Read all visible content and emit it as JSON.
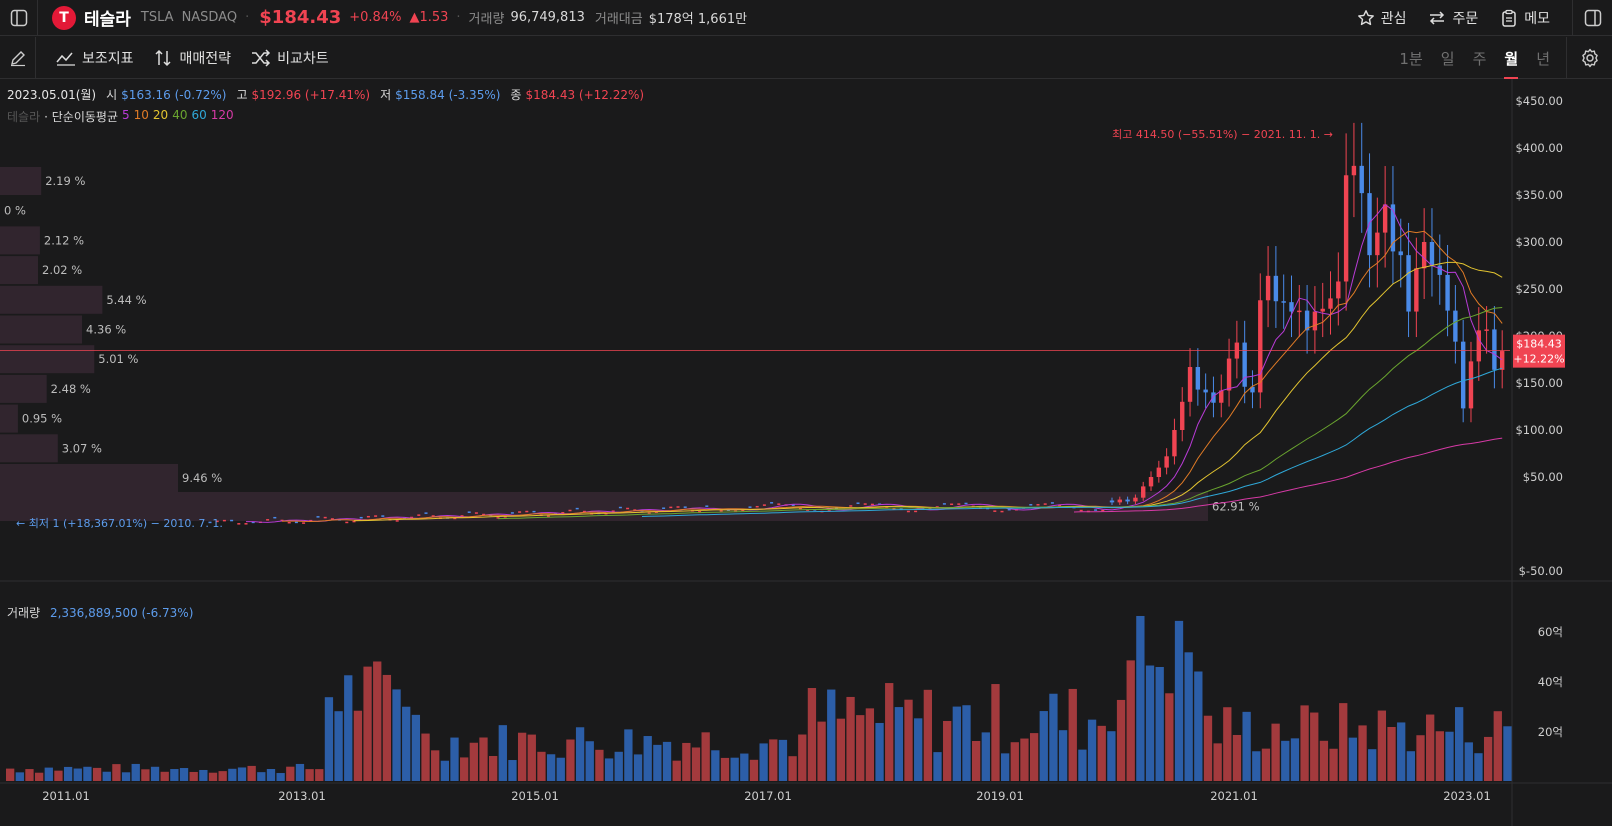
{
  "header": {
    "logo_text": "T",
    "name": "테슬라",
    "ticker": "TSLA",
    "exchange": "NASDAQ",
    "price": "$184.43",
    "change_pct": "+0.84%",
    "change_abs": "▲1.53",
    "volume_label": "거래량",
    "volume_value": "96,749,813",
    "amount_label": "거래대금",
    "amount_value": "$178억 1,661만",
    "watch_label": "관심",
    "order_label": "주문",
    "memo_label": "메모"
  },
  "toolbar": {
    "indicators_label": "보조지표",
    "strategy_label": "매매전략",
    "compare_label": "비교차트",
    "periods": [
      "1분",
      "일",
      "주",
      "월",
      "년"
    ],
    "active_period": "월"
  },
  "ohlc": {
    "date": "2023.05.01(월)",
    "open_label": "시",
    "open": "$163.16 (-0.72%)",
    "high_label": "고",
    "high": "$192.96 (+17.41%)",
    "low_label": "저",
    "low": "$158.84 (-3.35%)",
    "close_label": "종",
    "close": "$184.43 (+12.22%)"
  },
  "ma_legend": {
    "name": "테슬라",
    "label": "· 단순이동평균",
    "periods": [
      "5",
      "10",
      "20",
      "40",
      "60",
      "120"
    ],
    "colors": [
      "#b83bd6",
      "#e07b26",
      "#e3c430",
      "#6aa52f",
      "#2fa8d8",
      "#d63aa6"
    ]
  },
  "annotations": {
    "high": "최고 414.50 (−55.51%) − 2021. 11. 1. →",
    "low": "← 최저 1 (+18,367.01%) − 2010. 7. 1."
  },
  "price_tag": {
    "price": "$184.43",
    "pct": "+12.22%"
  },
  "volume_header": {
    "label": "거래량",
    "value": "2,336,889,500 (-6.73%)"
  },
  "colors": {
    "up": "#f04452",
    "down": "#4a8ae8",
    "vol_up": "#a33a3d",
    "vol_down": "#2c5ea8",
    "profile": "#3a2a36"
  },
  "chart_data": {
    "type": "candlestick",
    "price_axis": {
      "ticks": [
        "$450.00",
        "$400.00",
        "$350.00",
        "$300.00",
        "$250.00",
        "$200.00",
        "$150.00",
        "$100.00",
        "$50.00",
        "$-50.00"
      ],
      "values": [
        450,
        400,
        350,
        300,
        250,
        200,
        150,
        100,
        50,
        -50
      ]
    },
    "volume_axis": {
      "ticks": [
        "60억",
        "40억",
        "20억"
      ],
      "values": [
        60,
        40,
        20
      ]
    },
    "x_labels": [
      "2011.01",
      "2013.01",
      "2015.01",
      "2017.01",
      "2019.01",
      "2021.01",
      "2023.01"
    ],
    "volume_profile": [
      {
        "label": "2.19 %",
        "pct": 2.19
      },
      {
        "label": "0 %",
        "pct": 0
      },
      {
        "label": "2.12 %",
        "pct": 2.12
      },
      {
        "label": "2.02 %",
        "pct": 2.02
      },
      {
        "label": "5.44 %",
        "pct": 5.44
      },
      {
        "label": "4.36 %",
        "pct": 4.36
      },
      {
        "label": "5.01 %",
        "pct": 5.01
      },
      {
        "label": "2.48 %",
        "pct": 2.48
      },
      {
        "label": "0.95 %",
        "pct": 0.95
      },
      {
        "label": "3.07 %",
        "pct": 3.07
      },
      {
        "label": "9.46 %",
        "pct": 9.46
      },
      {
        "label": "62.91 %",
        "pct": 62.91
      }
    ],
    "candles_recent": [
      {
        "o": 25,
        "c": 23
      },
      {
        "o": 23,
        "c": 26
      },
      {
        "o": 26,
        "c": 24
      },
      {
        "o": 24,
        "c": 28
      },
      {
        "o": 28,
        "c": 40
      },
      {
        "o": 40,
        "c": 50
      },
      {
        "o": 50,
        "c": 60
      },
      {
        "o": 60,
        "c": 72
      },
      {
        "o": 72,
        "c": 100
      },
      {
        "o": 100,
        "c": 130
      },
      {
        "o": 130,
        "c": 167
      },
      {
        "o": 167,
        "c": 143
      },
      {
        "o": 143,
        "c": 140
      },
      {
        "o": 140,
        "c": 129
      },
      {
        "o": 129,
        "c": 142
      },
      {
        "o": 142,
        "c": 176
      },
      {
        "o": 176,
        "c": 193
      },
      {
        "o": 193,
        "c": 146
      },
      {
        "o": 146,
        "c": 140
      },
      {
        "o": 140,
        "c": 238
      },
      {
        "o": 238,
        "c": 264
      },
      {
        "o": 264,
        "c": 237
      },
      {
        "o": 237,
        "c": 236
      },
      {
        "o": 236,
        "c": 226
      },
      {
        "o": 226,
        "c": 227
      },
      {
        "o": 227,
        "c": 206
      },
      {
        "o": 206,
        "c": 226
      },
      {
        "o": 226,
        "c": 229
      },
      {
        "o": 229,
        "c": 240
      },
      {
        "o": 240,
        "c": 258
      },
      {
        "o": 258,
        "c": 371
      },
      {
        "o": 371,
        "c": 381
      },
      {
        "o": 381,
        "c": 352
      },
      {
        "o": 352,
        "c": 286
      },
      {
        "o": 286,
        "c": 310
      },
      {
        "o": 310,
        "c": 340
      },
      {
        "o": 340,
        "c": 290
      },
      {
        "o": 290,
        "c": 286
      },
      {
        "o": 286,
        "c": 226
      },
      {
        "o": 226,
        "c": 272
      },
      {
        "o": 272,
        "c": 300
      },
      {
        "o": 300,
        "c": 275
      },
      {
        "o": 275,
        "c": 265
      },
      {
        "o": 265,
        "c": 227
      },
      {
        "o": 227,
        "c": 194
      },
      {
        "o": 194,
        "c": 123
      },
      {
        "o": 123,
        "c": 173
      },
      {
        "o": 173,
        "c": 206
      },
      {
        "o": 206,
        "c": 207
      },
      {
        "o": 207,
        "c": 164
      },
      {
        "o": 164,
        "c": 184
      }
    ]
  }
}
